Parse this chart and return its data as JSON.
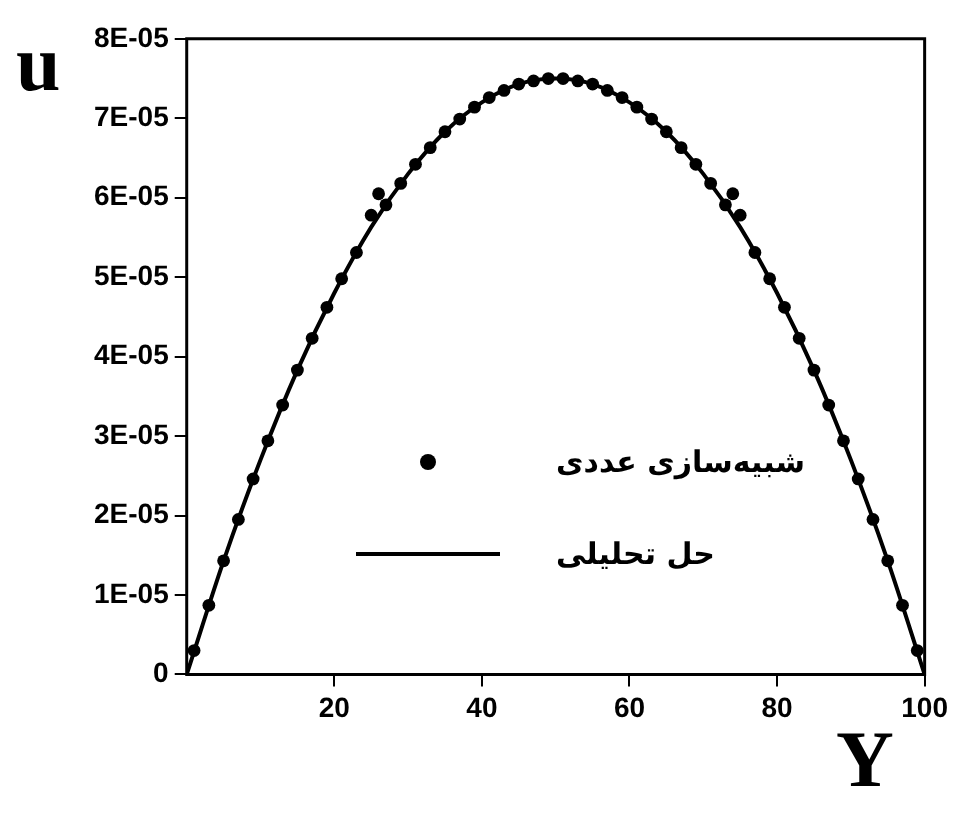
{
  "chart_data": {
    "type": "line",
    "xlabel": "Y",
    "ylabel": "u",
    "xlim": [
      0,
      100
    ],
    "ylim": [
      0,
      8e-05
    ],
    "xticks": [
      20,
      40,
      60,
      80,
      100
    ],
    "yticks": [
      0,
      {
        "value": 1e-05,
        "label": "1E-05"
      },
      {
        "value": 2e-05,
        "label": "2E-05"
      },
      {
        "value": 3e-05,
        "label": "3E-05"
      },
      {
        "value": 4e-05,
        "label": "4E-05"
      },
      {
        "value": 5e-05,
        "label": "5E-05"
      },
      {
        "value": 6e-05,
        "label": "6E-05"
      },
      {
        "value": 7e-05,
        "label": "7E-05"
      },
      {
        "value": 8e-05,
        "label": "8E-05"
      }
    ],
    "grid": false,
    "legend": "center",
    "series": [
      {
        "name": "شبیه‌سازی عددی",
        "type": "scatter",
        "marker": "circle",
        "color": "#000000",
        "x": [
          1,
          3,
          5,
          7,
          9,
          11,
          13,
          15,
          17,
          19,
          21,
          23,
          25,
          26,
          27,
          29,
          31,
          33,
          35,
          37,
          39,
          41,
          43,
          45,
          47,
          49,
          51,
          53,
          55,
          57,
          59,
          61,
          63,
          65,
          67,
          69,
          71,
          73,
          74,
          75,
          77,
          79,
          81,
          83,
          85,
          87,
          89,
          91,
          93,
          95,
          97,
          99
        ],
        "values": [
          3e-06,
          8.7e-06,
          1.43e-05,
          1.95e-05,
          2.46e-05,
          2.94e-05,
          3.39e-05,
          3.83e-05,
          4.23e-05,
          4.62e-05,
          4.98e-05,
          5.31e-05,
          5.78e-05,
          6.05e-05,
          5.91e-05,
          6.18e-05,
          6.42e-05,
          6.63e-05,
          6.83e-05,
          6.99e-05,
          7.14e-05,
          7.26e-05,
          7.35e-05,
          7.43e-05,
          7.47e-05,
          7.5e-05,
          7.5e-05,
          7.47e-05,
          7.43e-05,
          7.35e-05,
          7.26e-05,
          7.14e-05,
          6.99e-05,
          6.83e-05,
          6.63e-05,
          6.42e-05,
          6.18e-05,
          5.91e-05,
          6.05e-05,
          5.78e-05,
          5.31e-05,
          4.98e-05,
          4.62e-05,
          4.23e-05,
          3.83e-05,
          3.39e-05,
          2.94e-05,
          2.46e-05,
          1.95e-05,
          1.43e-05,
          8.7e-06,
          3e-06
        ]
      },
      {
        "name": "حل تحلیلی",
        "type": "line",
        "marker": "none",
        "line_style": "solid",
        "color": "#000000",
        "x": [
          0,
          5,
          10,
          15,
          20,
          25,
          30,
          35,
          40,
          45,
          50,
          55,
          60,
          65,
          70,
          75,
          80,
          85,
          90,
          95,
          100
        ],
        "values": [
          0,
          1.43e-05,
          2.7e-05,
          3.83e-05,
          4.8e-05,
          5.63e-05,
          6.3e-05,
          6.83e-05,
          7.2e-05,
          7.43e-05,
          7.5e-05,
          7.43e-05,
          7.2e-05,
          6.83e-05,
          6.3e-05,
          5.63e-05,
          4.8e-05,
          3.83e-05,
          2.7e-05,
          1.43e-05,
          0
        ]
      }
    ]
  }
}
